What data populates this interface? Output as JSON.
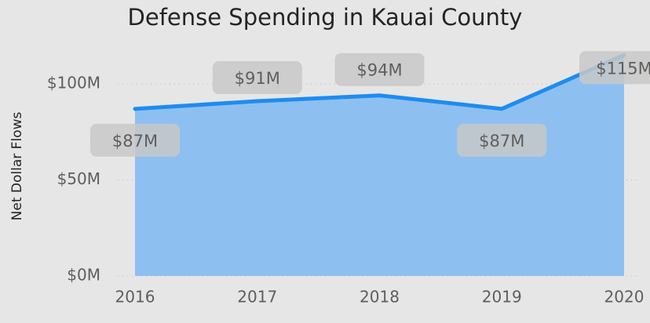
{
  "chart_data": {
    "type": "area",
    "title": "Defense Spending in Kauai County",
    "y_label": "Net Dollar Flows",
    "categories": [
      "2016",
      "2017",
      "2018",
      "2019",
      "2020"
    ],
    "series": [
      {
        "name": "Net Dollar Flows",
        "color": "#1e8cf0",
        "fill": "#8dc0f0",
        "values": [
          87,
          91,
          94,
          87,
          115
        ],
        "value_labels": [
          "$87M",
          "$91M",
          "$94M",
          "$87M",
          "$115M"
        ]
      }
    ],
    "ylim": [
      0,
      120
    ],
    "yticks": [
      {
        "value": 0,
        "label": "$0M"
      },
      {
        "value": 50,
        "label": "$50M"
      },
      {
        "value": 100,
        "label": "$100M"
      }
    ],
    "grid": true
  }
}
